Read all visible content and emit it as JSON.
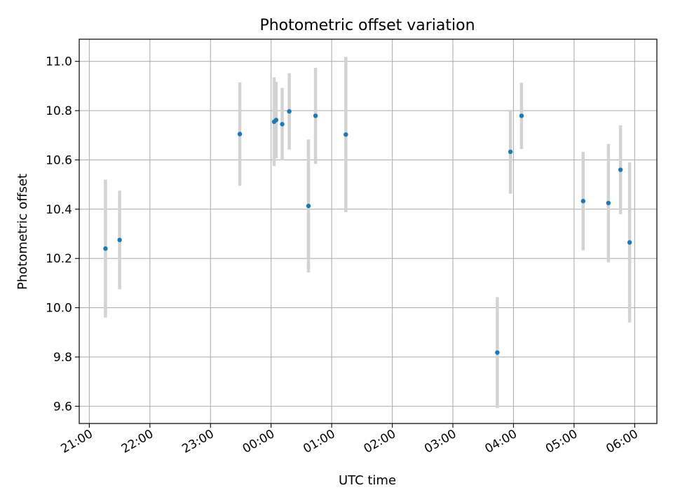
{
  "chart_data": {
    "type": "scatter",
    "title": "Photometric offset variation",
    "xlabel": "UTC time",
    "ylabel": "Photometric offset",
    "x_axis_type": "time",
    "xlim": [
      "20:50",
      "06:22"
    ],
    "ylim": [
      9.53,
      11.09
    ],
    "x_ticks": [
      "21:00",
      "22:00",
      "23:00",
      "00:00",
      "01:00",
      "02:00",
      "03:00",
      "04:00",
      "05:00",
      "06:00"
    ],
    "y_ticks": [
      9.6,
      9.8,
      10.0,
      10.2,
      10.4,
      10.6,
      10.8,
      11.0
    ],
    "y_tick_labels": [
      "9.6",
      "9.8",
      "10.0",
      "10.2",
      "10.4",
      "10.6",
      "10.8",
      "11.0"
    ],
    "grid": true,
    "marker_color": "#1f77b4",
    "errorbar_color": "#d3d3d3",
    "points": [
      {
        "time": "21:16",
        "y": 10.24,
        "err": 0.28
      },
      {
        "time": "21:30",
        "y": 10.275,
        "err": 0.2
      },
      {
        "time": "23:29",
        "y": 10.705,
        "err": 0.21
      },
      {
        "time": "00:03",
        "y": 10.755,
        "err": 0.18
      },
      {
        "time": "00:05",
        "y": 10.762,
        "err": 0.155
      },
      {
        "time": "00:11",
        "y": 10.745,
        "err": 0.147
      },
      {
        "time": "00:18",
        "y": 10.797,
        "err": 0.155
      },
      {
        "time": "00:37",
        "y": 10.413,
        "err": 0.27
      },
      {
        "time": "00:44",
        "y": 10.779,
        "err": 0.195
      },
      {
        "time": "01:14",
        "y": 10.703,
        "err": 0.315
      },
      {
        "time": "03:44",
        "y": 9.818,
        "err": 0.225
      },
      {
        "time": "03:57",
        "y": 10.633,
        "err": 0.17
      },
      {
        "time": "04:08",
        "y": 10.779,
        "err": 0.135
      },
      {
        "time": "05:09",
        "y": 10.433,
        "err": 0.2
      },
      {
        "time": "05:34",
        "y": 10.425,
        "err": 0.24
      },
      {
        "time": "05:46",
        "y": 10.56,
        "err": 0.18
      },
      {
        "time": "05:55",
        "y": 10.265,
        "err": 0.325
      }
    ]
  }
}
